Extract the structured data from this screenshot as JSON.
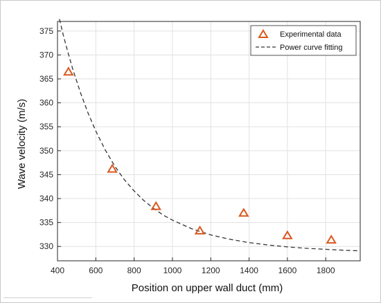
{
  "chart_data": {
    "type": "scatter",
    "title": "",
    "xlabel": "Position on upper wall duct   (mm)",
    "ylabel": "Wave velocity   (m/s)",
    "xlim": [
      400,
      1980
    ],
    "ylim": [
      327,
      377
    ],
    "xticks": [
      400,
      600,
      800,
      1000,
      1200,
      1400,
      1600,
      1800
    ],
    "yticks": [
      330,
      335,
      340,
      345,
      350,
      355,
      360,
      365,
      370,
      375
    ],
    "grid": true,
    "legend_position": "top-right",
    "colors": {
      "marker": "#d9581e",
      "curve": "#333333",
      "grid": "#e1e1e1",
      "axis": "#262626"
    },
    "series": [
      {
        "name": "Experimental data",
        "kind": "scatter",
        "marker": "triangle",
        "x": [
          457,
          686,
          914,
          1143,
          1372,
          1600,
          1829
        ],
        "y": [
          366.5,
          346.2,
          338.4,
          333.3,
          337.0,
          332.3,
          331.4
        ]
      },
      {
        "name": "Power curve fitting",
        "kind": "line",
        "style": "dashed",
        "x": [
          410,
          430,
          450,
          480,
          520,
          560,
          600,
          650,
          700,
          750,
          800,
          850,
          900,
          950,
          1000,
          1100,
          1200,
          1300,
          1400,
          1500,
          1600,
          1700,
          1800,
          1900,
          1970
        ],
        "y": [
          377.5,
          374.2,
          371.2,
          367.0,
          362.1,
          357.8,
          354.1,
          350.1,
          346.7,
          343.9,
          341.6,
          339.6,
          338.0,
          336.6,
          335.5,
          333.7,
          332.4,
          331.5,
          330.8,
          330.3,
          329.9,
          329.6,
          329.4,
          329.2,
          329.1
        ]
      }
    ]
  }
}
